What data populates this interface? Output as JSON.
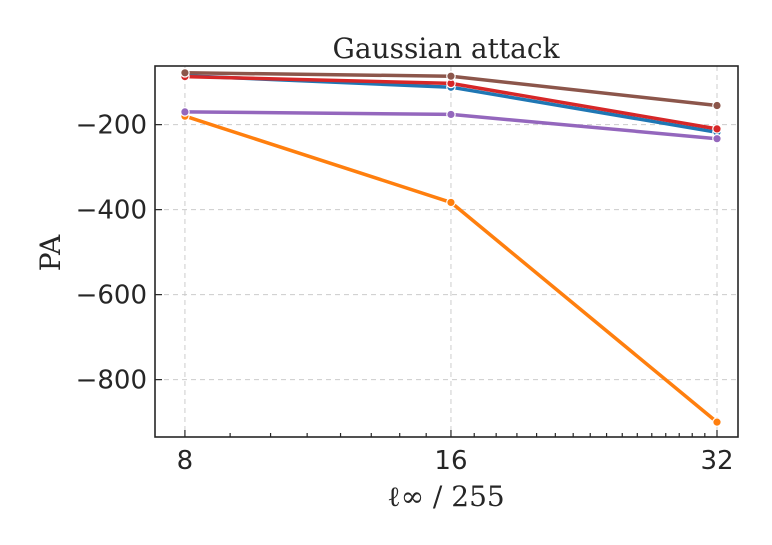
{
  "chart_data": {
    "type": "line",
    "title": "Gaussian attack",
    "xlabel": "ℓ∞ / 255",
    "ylabel": "PA",
    "x": [
      8,
      16,
      32
    ],
    "x_tick_labels": [
      "8",
      "16",
      "32"
    ],
    "x_scale": "log2",
    "xlim": [
      7.4,
      33.8
    ],
    "ylim": [
      -935,
      -62
    ],
    "y_ticks": [
      -200,
      -400,
      -600,
      -800
    ],
    "y_tick_labels": [
      "−200",
      "−400",
      "−600",
      "−800"
    ],
    "grid": true,
    "series": [
      {
        "color": "#1f77b4",
        "values": [
          -85,
          -112,
          -218
        ]
      },
      {
        "color": "#ff7f0e",
        "values": [
          -180,
          -383,
          -900
        ]
      },
      {
        "color": "#9467bd",
        "values": [
          -170,
          -176,
          -233
        ]
      },
      {
        "color": "#d62728",
        "values": [
          -87,
          -103,
          -210
        ]
      },
      {
        "color": "#8c564b",
        "values": [
          -78,
          -86,
          -155
        ]
      }
    ]
  }
}
